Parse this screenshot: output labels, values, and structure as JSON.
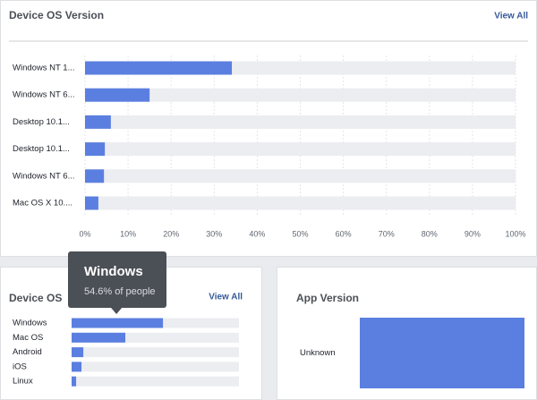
{
  "chart_data": [
    {
      "type": "bar",
      "title": "Device OS Version",
      "link": "View All",
      "categories": [
        "Windows NT 1...",
        "Windows NT 6...",
        "Desktop 10.1...",
        "Desktop 10.1...",
        "Windows NT 6...",
        "Mac OS X 10...."
      ],
      "values": [
        34.1,
        15.0,
        6.0,
        4.6,
        4.4,
        3.1
      ],
      "color": "#5b7fe0",
      "xlim": [
        0,
        100
      ],
      "xticks": [
        {
          "value": 0,
          "label": "0%"
        },
        {
          "value": 10,
          "label": "10%"
        },
        {
          "value": 20,
          "label": "20%"
        },
        {
          "value": 30,
          "label": "30%"
        },
        {
          "value": 40,
          "label": "40%"
        },
        {
          "value": 50,
          "label": "50%"
        },
        {
          "value": 60,
          "label": "60%"
        },
        {
          "value": 70,
          "label": "70%"
        },
        {
          "value": 80,
          "label": "80%"
        },
        {
          "value": 90,
          "label": "90%"
        },
        {
          "value": 100,
          "label": "100%"
        }
      ],
      "grid": true
    },
    {
      "type": "bar",
      "title": "Device OS",
      "link": "View All",
      "categories": [
        "Windows",
        "Mac OS",
        "Android",
        "iOS",
        "Linux"
      ],
      "values": [
        54.6,
        32.1,
        7.0,
        5.9,
        2.7
      ],
      "color": "#5b7fe0",
      "xlim": [
        0,
        100
      ],
      "tooltip": {
        "title": "Windows",
        "text": "54.6% of people"
      }
    },
    {
      "type": "bar",
      "title": "App Version",
      "categories": [
        "Unknown"
      ],
      "values": [
        100
      ],
      "color": "#5b7fe0",
      "xlim": [
        0,
        100
      ]
    }
  ]
}
